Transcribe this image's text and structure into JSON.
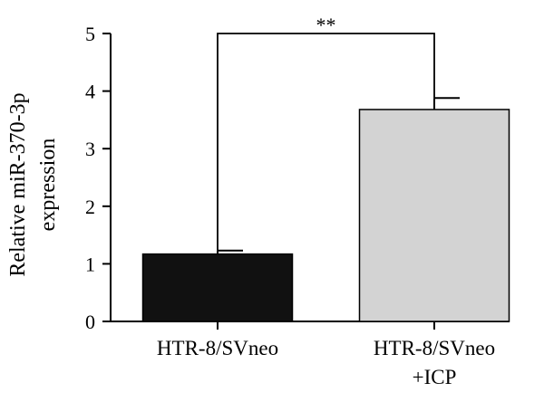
{
  "chart_data": {
    "type": "bar",
    "categories": [
      [
        "HTR-8/SVneo"
      ],
      [
        "HTR-8/SVneo",
        "+ICP"
      ]
    ],
    "values": [
      1.17,
      3.68
    ],
    "errors": [
      0.06,
      0.2
    ],
    "colors": [
      "#111111",
      "#d3d3d3"
    ],
    "ylabel": [
      "Relative miR-370-3p",
      "expression"
    ],
    "ylim": [
      0,
      5
    ],
    "yticks": [
      0,
      1,
      2,
      3,
      4,
      5
    ],
    "grid": false,
    "significance": {
      "label": "**",
      "from": 0,
      "to": 1,
      "y": 5
    }
  }
}
